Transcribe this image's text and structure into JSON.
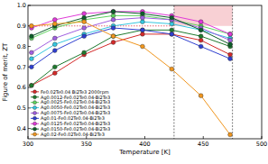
{
  "chart_data": {
    "type": "line",
    "xlabel": "Temperature [K]",
    "ylabel": "Figure of merit, ZT",
    "x": [
      303,
      323,
      348,
      373,
      398,
      423,
      448,
      473
    ],
    "xlim": [
      300,
      500
    ],
    "xticks": [
      300,
      350,
      400,
      450,
      500
    ],
    "ylim": [
      0.35,
      1.0
    ],
    "yticks": [
      {
        "value": 0.4,
        "label": "0.4"
      },
      {
        "value": 0.5,
        "label": "0.5"
      },
      {
        "value": 0.6,
        "label": "0.6"
      },
      {
        "value": 0.7,
        "label": "0.7"
      },
      {
        "value": 0.8,
        "label": "0.8"
      },
      {
        "value": 0.9,
        "label": "0.9"
      },
      {
        "value": 1.0,
        "label": "1.0"
      }
    ],
    "legend": "lower left",
    "marker": "circle",
    "reference_lines": {
      "y": 0.9,
      "x": [
        425,
        475
      ]
    },
    "highlight": {
      "xlim": [
        425,
        475
      ],
      "ylim": [
        0.9,
        1.0
      ]
    },
    "series": [
      {
        "name": "Fe0.02Te0.04 Bi2Te3 2000rpm",
        "color": "#d42a2a",
        "values": [
          0.61,
          0.67,
          0.76,
          0.82,
          0.86,
          0.86,
          0.83,
          0.76
        ]
      },
      {
        "name": "Ag0.0012-Fe0.02Te0.04-Bi2Te3",
        "color": "#1e7a2e",
        "values": [
          0.61,
          0.7,
          0.77,
          0.85,
          0.88,
          0.88,
          0.85,
          0.8
        ]
      },
      {
        "name": "Ag0.0025-Fe0.02Te0.04-Bi2Te3",
        "color": "#5fd35f",
        "values": [
          0.84,
          0.89,
          0.93,
          0.95,
          0.95,
          0.93,
          0.9,
          0.86
        ]
      },
      {
        "name": "Ag0.0050-Fe0.02Te0.04-Bi2Te3",
        "color": "#35c7e0",
        "values": [
          0.74,
          0.81,
          0.86,
          0.9,
          0.92,
          0.91,
          0.88,
          0.84
        ]
      },
      {
        "name": "Ag0.0075-Fe0.02Te0.04-Bi2Te3",
        "color": "#a05fe0",
        "values": [
          0.77,
          0.84,
          0.89,
          0.93,
          0.94,
          0.93,
          0.89,
          0.83
        ]
      },
      {
        "name": "Ag0.01-Fe0.02Te0.04-Bi2Te3",
        "color": "#2f3fd0",
        "values": [
          0.7,
          0.78,
          0.85,
          0.89,
          0.88,
          0.86,
          0.8,
          0.74
        ]
      },
      {
        "name": "Ag0.0125-Fe0.02Te0.04-Bi2Te3",
        "color": "#e03ad8",
        "values": [
          0.89,
          0.93,
          0.96,
          0.97,
          0.97,
          0.95,
          0.92,
          0.86
        ]
      },
      {
        "name": "Ag0.0150-Fe0.02Te0.04-Bi2Te3",
        "color": "#0d5e2a",
        "values": [
          0.85,
          0.9,
          0.94,
          0.97,
          0.96,
          0.94,
          0.88,
          0.81
        ]
      },
      {
        "name": "Ag0.02-Fe0.02Te0.04-Bi2Te3",
        "color": "#f0961e",
        "values": [
          0.9,
          0.91,
          0.92,
          0.85,
          0.8,
          0.69,
          0.56,
          0.37
        ]
      }
    ]
  }
}
